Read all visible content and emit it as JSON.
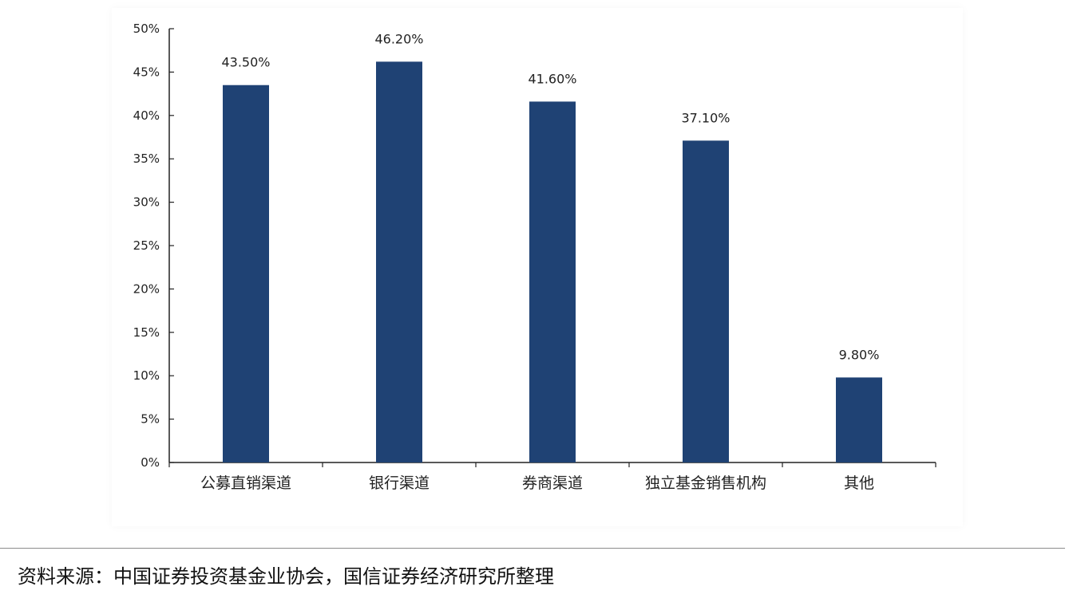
{
  "chart_data": {
    "type": "bar",
    "categories": [
      "公募直销渠道",
      "银行渠道",
      "券商渠道",
      "独立基金销售机构",
      "其他"
    ],
    "values": [
      43.5,
      46.2,
      41.6,
      37.1,
      9.8
    ],
    "data_labels": [
      "43.50%",
      "46.20%",
      "41.60%",
      "37.10%",
      "9.80%"
    ],
    "ylim": [
      0,
      50
    ],
    "y_ticks": [
      "0%",
      "5%",
      "10%",
      "15%",
      "20%",
      "25%",
      "30%",
      "35%",
      "40%",
      "45%",
      "50%"
    ],
    "title": "",
    "xlabel": "",
    "ylabel": "",
    "grid": false,
    "bar_color": "#1f4274"
  },
  "source_note": "资料来源：中国证券投资基金业协会，国信证券经济研究所整理"
}
